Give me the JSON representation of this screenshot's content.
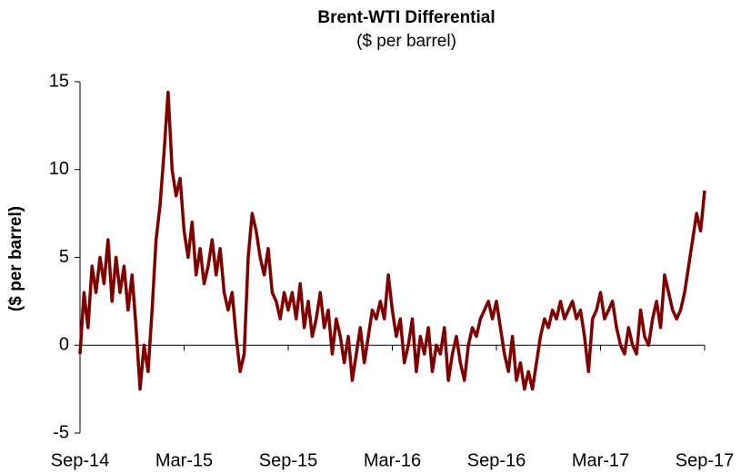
{
  "chart_data": {
    "type": "line",
    "title": "Brent-WTI Differential",
    "subtitle": "($ per barrel)",
    "y_label": "($ per barrel)",
    "categories": [
      "Sep-14",
      null,
      null,
      null,
      null,
      null,
      null,
      null,
      null,
      null,
      null,
      null,
      null,
      null,
      null,
      null,
      null,
      null,
      null,
      null,
      null,
      null,
      null,
      null,
      null,
      null,
      "Mar-15",
      null,
      null,
      null,
      null,
      null,
      null,
      null,
      null,
      null,
      null,
      null,
      null,
      null,
      null,
      null,
      null,
      null,
      null,
      null,
      null,
      null,
      null,
      null,
      null,
      null,
      "Sep-15",
      null,
      null,
      null,
      null,
      null,
      null,
      null,
      null,
      null,
      null,
      null,
      null,
      null,
      null,
      null,
      null,
      null,
      null,
      null,
      null,
      null,
      null,
      null,
      null,
      null,
      "Mar-16",
      null,
      null,
      null,
      null,
      null,
      null,
      null,
      null,
      null,
      null,
      null,
      null,
      null,
      null,
      null,
      null,
      null,
      null,
      null,
      null,
      null,
      null,
      null,
      null,
      null,
      "Sep-16",
      null,
      null,
      null,
      null,
      null,
      null,
      null,
      null,
      null,
      null,
      null,
      null,
      null,
      null,
      null,
      null,
      null,
      null,
      null,
      null,
      null,
      null,
      null,
      null,
      null,
      "Mar-17",
      null,
      null,
      null,
      null,
      null,
      null,
      null,
      null,
      null,
      null,
      null,
      null,
      null,
      null,
      null,
      null,
      null,
      null,
      null,
      null,
      null,
      null,
      null,
      null,
      null,
      "Sep-17"
    ],
    "values": [
      -0.5,
      3,
      1,
      4.5,
      3,
      5,
      3.5,
      6,
      2.5,
      5,
      3,
      4.5,
      2,
      4,
      1,
      -2.5,
      0,
      -1.5,
      2,
      6,
      8,
      11,
      14.4,
      10,
      8.5,
      9.5,
      6.5,
      5,
      7,
      4,
      5.5,
      3.5,
      4.5,
      6,
      4,
      5.5,
      3,
      2,
      3,
      0.5,
      -1.5,
      -0.5,
      5,
      7.5,
      6.5,
      5,
      4,
      5.5,
      3,
      2.5,
      1.5,
      3,
      2,
      3,
      1.5,
      3.5,
      1,
      2.5,
      0.5,
      1.5,
      3,
      1,
      2,
      -0.5,
      1.5,
      0.5,
      -1,
      0.5,
      -2,
      -0.5,
      1,
      -1,
      0.5,
      2,
      1.5,
      2.5,
      1.5,
      4,
      2,
      0.5,
      1.5,
      -1,
      0,
      1.5,
      -1.5,
      0.5,
      -0.5,
      1,
      -1.5,
      0,
      -0.5,
      1,
      -2,
      -0.5,
      0.5,
      -1,
      -2,
      0,
      1,
      0.5,
      1.5,
      2,
      2.5,
      1.5,
      2.5,
      1,
      -0.5,
      -1.5,
      0.5,
      -2,
      -1,
      -2.5,
      -1.5,
      -2.5,
      -1,
      0.5,
      1.5,
      1,
      2,
      1.5,
      2.5,
      1.5,
      2,
      2.5,
      1.5,
      2,
      0.5,
      -1.5,
      1.5,
      2,
      3,
      1.5,
      2,
      2.5,
      1,
      0,
      -0.5,
      1,
      0,
      -0.5,
      2,
      0.5,
      0,
      1.5,
      2.5,
      1,
      4,
      3,
      2,
      1.5,
      2,
      3,
      4.5,
      6,
      7.5,
      6.5,
      8.8
    ],
    "color": "#800000",
    "ylim": [
      -5,
      15
    ],
    "yticks": [
      -5,
      0,
      5,
      10,
      15
    ],
    "grid": false
  }
}
